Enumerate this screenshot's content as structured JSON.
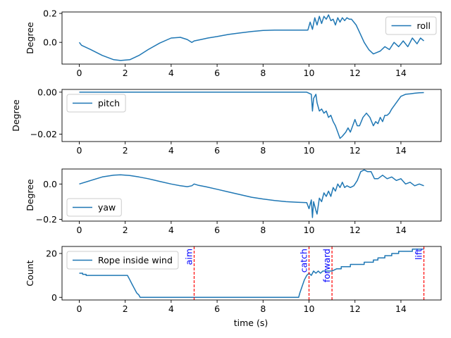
{
  "figure": {
    "xlabel": "time (s)"
  },
  "chart_data": [
    {
      "type": "line",
      "ylabel": "Degree",
      "xlim": [
        -0.75,
        15.75
      ],
      "ylim": [
        -0.15,
        0.21
      ],
      "xticks": [
        0,
        2,
        4,
        6,
        8,
        10,
        12,
        14
      ],
      "yticks": [
        0.0,
        0.2
      ],
      "ytick_labels": [
        "0.0",
        "0.2"
      ],
      "legend": "top-right",
      "series": [
        {
          "name": "roll",
          "color": "#1f77b4",
          "x": [
            0,
            0.1,
            0.5,
            1.0,
            1.5,
            1.8,
            2.2,
            2.6,
            3.0,
            3.5,
            4.0,
            4.4,
            4.7,
            4.9,
            5.0,
            5.3,
            5.6,
            6.0,
            6.5,
            7.0,
            7.5,
            8.0,
            8.5,
            9.0,
            9.5,
            9.95,
            10.05,
            10.15,
            10.25,
            10.35,
            10.45,
            10.55,
            10.65,
            10.75,
            10.85,
            10.95,
            11.05,
            11.15,
            11.25,
            11.35,
            11.45,
            11.55,
            11.65,
            11.75,
            11.85,
            11.95,
            12.05,
            12.2,
            12.4,
            12.6,
            12.8,
            12.95,
            13.1,
            13.3,
            13.5,
            13.7,
            13.9,
            14.1,
            14.3,
            14.5,
            14.7,
            14.85,
            15.0
          ],
          "y": [
            0.0,
            -0.02,
            -0.05,
            -0.09,
            -0.12,
            -0.125,
            -0.12,
            -0.09,
            -0.05,
            -0.005,
            0.03,
            0.035,
            0.02,
            0.0,
            0.01,
            0.02,
            0.03,
            0.04,
            0.055,
            0.065,
            0.075,
            0.082,
            0.085,
            0.085,
            0.085,
            0.085,
            0.14,
            0.09,
            0.17,
            0.12,
            0.18,
            0.13,
            0.18,
            0.16,
            0.19,
            0.15,
            0.16,
            0.12,
            0.17,
            0.14,
            0.17,
            0.15,
            0.17,
            0.16,
            0.16,
            0.14,
            0.12,
            0.07,
            0.0,
            -0.05,
            -0.08,
            -0.07,
            -0.06,
            -0.03,
            -0.05,
            0.0,
            -0.03,
            0.01,
            -0.03,
            0.03,
            -0.01,
            0.03,
            0.01
          ]
        }
      ]
    },
    {
      "type": "line",
      "ylabel": "Degree",
      "xlim": [
        -0.75,
        15.75
      ],
      "ylim": [
        -0.0235,
        0.0013
      ],
      "xticks": [
        0,
        2,
        4,
        6,
        8,
        10,
        12,
        14
      ],
      "yticks": [
        0.0,
        -0.02
      ],
      "ytick_labels": [
        "0.00",
        "−0.02"
      ],
      "legend": "top-left",
      "series": [
        {
          "name": "pitch",
          "color": "#1f77b4",
          "x": [
            0,
            2,
            4,
            6,
            8,
            9.9,
            10.1,
            10.15,
            10.2,
            10.3,
            10.35,
            10.45,
            10.55,
            10.65,
            10.75,
            10.85,
            10.95,
            11.05,
            11.15,
            11.25,
            11.35,
            11.45,
            11.6,
            11.7,
            11.8,
            11.9,
            12.0,
            12.1,
            12.2,
            12.35,
            12.5,
            12.65,
            12.8,
            12.9,
            13.0,
            13.1,
            13.2,
            13.3,
            13.4,
            13.5,
            13.6,
            13.8,
            14.0,
            14.2,
            14.4,
            14.6,
            14.8,
            15.0
          ],
          "y": [
            0.0,
            0.0,
            0.0,
            0.0,
            0.0,
            0.0,
            -0.001,
            -0.009,
            -0.003,
            -0.001,
            -0.005,
            -0.009,
            -0.008,
            -0.01,
            -0.009,
            -0.012,
            -0.011,
            -0.014,
            -0.016,
            -0.019,
            -0.022,
            -0.021,
            -0.019,
            -0.017,
            -0.019,
            -0.016,
            -0.013,
            -0.016,
            -0.016,
            -0.012,
            -0.01,
            -0.012,
            -0.016,
            -0.014,
            -0.015,
            -0.012,
            -0.014,
            -0.011,
            -0.011,
            -0.01,
            -0.008,
            -0.005,
            -0.002,
            -0.001,
            -0.0008,
            -0.0005,
            -0.0003,
            -0.0002
          ]
        }
      ]
    },
    {
      "type": "line",
      "ylabel": "Degree",
      "xlim": [
        -0.75,
        15.75
      ],
      "ylim": [
        -0.21,
        0.085
      ],
      "xticks": [
        0,
        2,
        4,
        6,
        8,
        10,
        12,
        14
      ],
      "yticks": [
        0.0,
        -0.2
      ],
      "ytick_labels": [
        "0.0",
        "−0.2"
      ],
      "legend": "bottom-left",
      "series": [
        {
          "name": "yaw",
          "color": "#1f77b4",
          "x": [
            0,
            0.5,
            1.0,
            1.5,
            1.8,
            2.2,
            2.6,
            3.0,
            3.5,
            4.0,
            4.4,
            4.7,
            4.9,
            5.0,
            5.2,
            5.5,
            6.0,
            6.5,
            7.0,
            7.5,
            8.0,
            8.5,
            9.0,
            9.5,
            9.9,
            10.0,
            10.1,
            10.15,
            10.2,
            10.3,
            10.35,
            10.45,
            10.55,
            10.65,
            10.75,
            10.85,
            10.95,
            11.05,
            11.15,
            11.25,
            11.35,
            11.45,
            11.55,
            11.65,
            11.8,
            11.95,
            12.1,
            12.25,
            12.4,
            12.55,
            12.7,
            12.85,
            13.0,
            13.2,
            13.4,
            13.6,
            13.8,
            14.0,
            14.2,
            14.4,
            14.6,
            14.8,
            15.0
          ],
          "y": [
            0.0,
            0.02,
            0.04,
            0.05,
            0.052,
            0.048,
            0.04,
            0.03,
            0.015,
            0.0,
            -0.01,
            -0.015,
            -0.01,
            0.0,
            -0.008,
            -0.015,
            -0.03,
            -0.045,
            -0.06,
            -0.075,
            -0.085,
            -0.093,
            -0.1,
            -0.103,
            -0.105,
            -0.14,
            -0.09,
            -0.19,
            -0.1,
            -0.15,
            -0.17,
            -0.08,
            -0.1,
            -0.05,
            -0.07,
            -0.04,
            -0.07,
            -0.02,
            -0.04,
            0.0,
            -0.02,
            0.01,
            -0.02,
            -0.01,
            -0.02,
            -0.01,
            0.02,
            0.07,
            0.08,
            0.07,
            0.07,
            0.03,
            0.03,
            0.05,
            0.03,
            0.04,
            0.02,
            0.03,
            0.0,
            0.01,
            -0.01,
            0.0,
            -0.01
          ]
        }
      ]
    },
    {
      "type": "line",
      "ylabel": "Count",
      "xlim": [
        -0.75,
        15.75
      ],
      "ylim": [
        -1.2,
        23.2
      ],
      "xticks": [
        0,
        2,
        4,
        6,
        8,
        10,
        12,
        14
      ],
      "yticks": [
        0,
        20
      ],
      "ytick_labels": [
        "0",
        "20"
      ],
      "legend": "top-left",
      "series": [
        {
          "name": "Rope inside wind",
          "color": "#1f77b4",
          "x": [
            0,
            0.15,
            0.15,
            0.3,
            0.3,
            2.1,
            2.2,
            2.3,
            2.4,
            2.5,
            2.6,
            2.65,
            2.65,
            9.55,
            9.6,
            9.7,
            9.8,
            9.9,
            10.0,
            10.1,
            10.2,
            10.3,
            10.4,
            10.5,
            10.6,
            10.8,
            11.0,
            11.2,
            11.4,
            11.4,
            11.8,
            11.8,
            12.4,
            12.4,
            12.8,
            12.8,
            13.0,
            13.0,
            13.3,
            13.3,
            13.6,
            13.6,
            13.9,
            13.9,
            14.2,
            14.2,
            14.5,
            14.5,
            15.0
          ],
          "y": [
            11,
            11,
            10.5,
            10.5,
            10,
            10,
            8,
            6,
            4,
            2,
            1,
            0,
            0,
            0,
            2,
            5,
            8,
            10,
            11,
            10,
            12,
            11,
            12,
            11,
            12,
            12,
            12,
            13,
            13,
            14,
            14,
            15,
            15,
            16,
            16,
            17,
            17,
            18,
            18,
            19,
            19,
            20,
            20,
            21,
            21,
            21,
            21,
            22,
            22
          ]
        }
      ],
      "events": [
        {
          "x": 5.0,
          "label": "aim"
        },
        {
          "x": 10.0,
          "label": "catch"
        },
        {
          "x": 11.0,
          "label": "forward"
        },
        {
          "x": 15.0,
          "label": "lift"
        }
      ],
      "event_color": "#ff0000",
      "event_label_color": "#0000ff"
    }
  ]
}
